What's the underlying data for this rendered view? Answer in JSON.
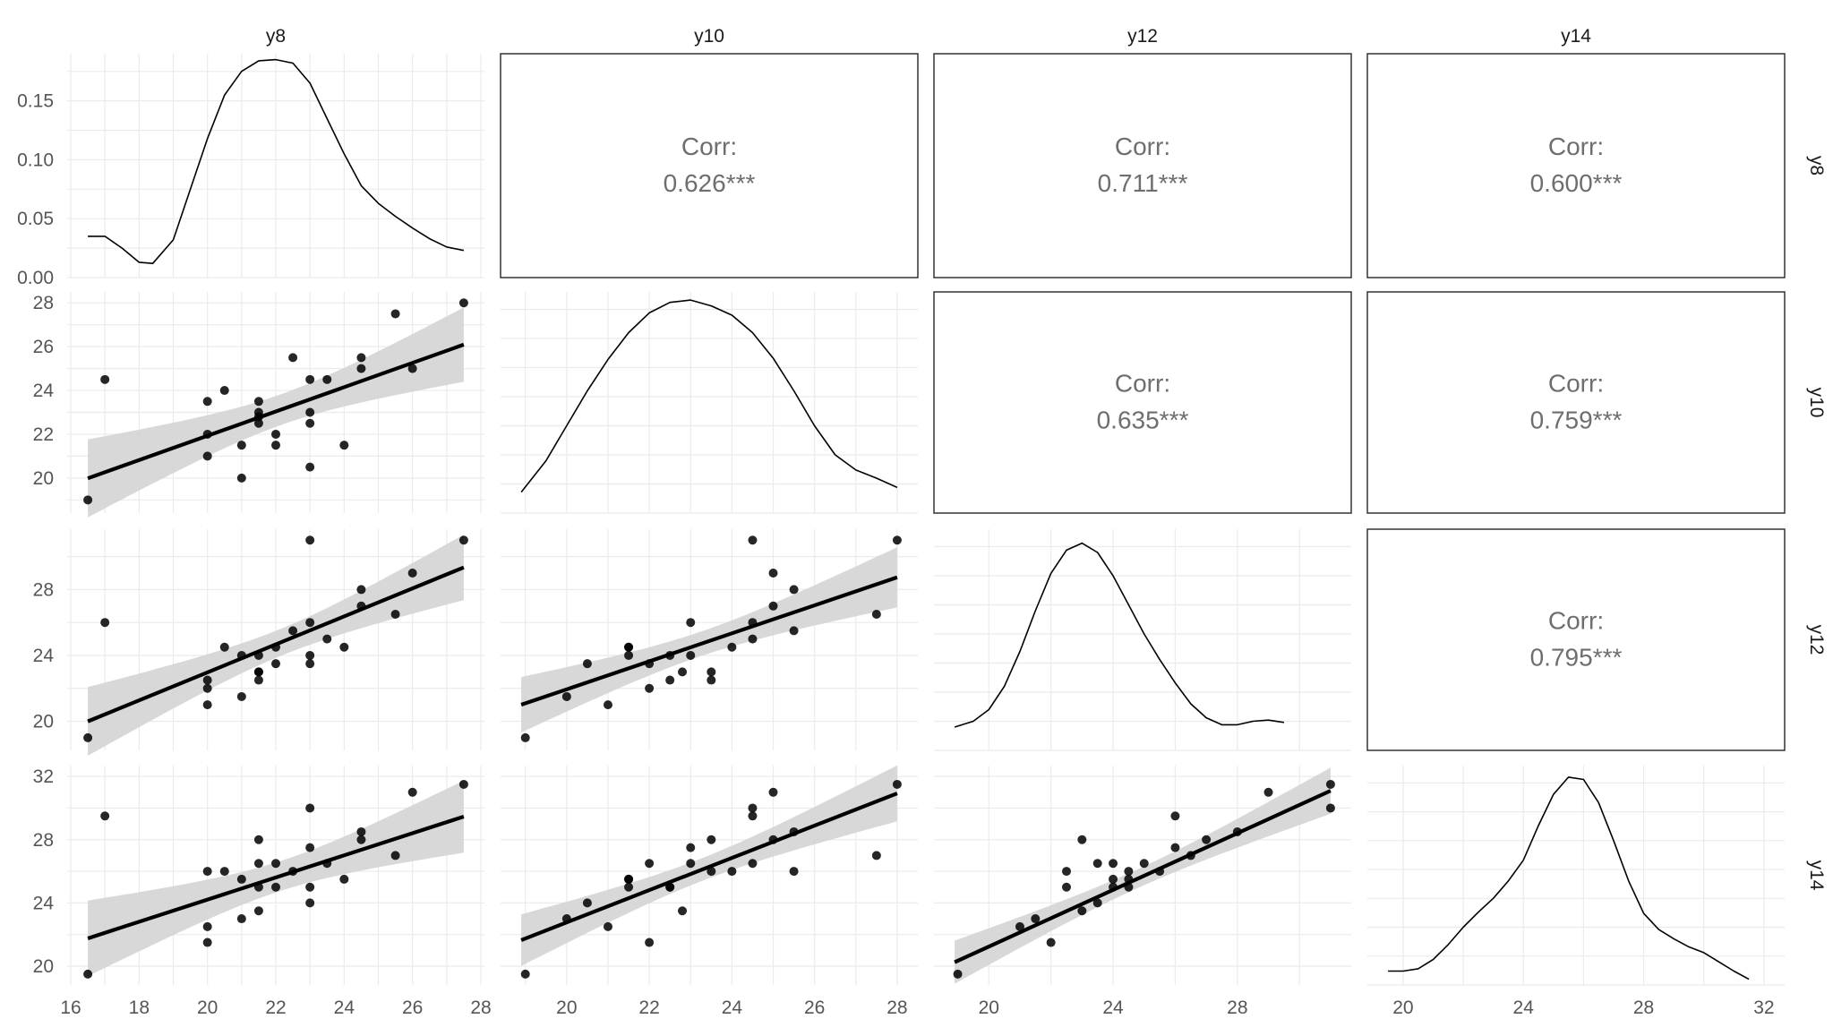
{
  "chart_data": {
    "type": "pairs",
    "variables": [
      "y8",
      "y10",
      "y12",
      "y14"
    ],
    "ranges": {
      "y8": [
        16.5,
        27.5
      ],
      "y10": [
        18.9,
        28.0
      ],
      "y12": [
        18.9,
        31.0
      ],
      "y14": [
        19.5,
        32.0
      ]
    },
    "ticks": {
      "y8": [
        16,
        18,
        20,
        22,
        24,
        26,
        28
      ],
      "y10": [
        20,
        22,
        24,
        26,
        28
      ],
      "y12": [
        20,
        24,
        28
      ],
      "y14": [
        20,
        24,
        28,
        32
      ]
    },
    "density_ticks": [
      "0.00",
      "0.05",
      "0.10",
      "0.15"
    ],
    "correlation_label": "Corr:",
    "correlations": [
      {
        "row": "y8",
        "col": "y10",
        "value": "0.626***"
      },
      {
        "row": "y8",
        "col": "y12",
        "value": "0.711***"
      },
      {
        "row": "y8",
        "col": "y14",
        "value": "0.600***"
      },
      {
        "row": "y10",
        "col": "y12",
        "value": "0.635***"
      },
      {
        "row": "y10",
        "col": "y14",
        "value": "0.759***"
      },
      {
        "row": "y12",
        "col": "y14",
        "value": "0.795***"
      }
    ],
    "observations": [
      {
        "y8": 16.5,
        "y10": 19.0,
        "y12": 19.0,
        "y14": 19.5
      },
      {
        "y8": 17.0,
        "y10": 24.5,
        "y12": 26.0,
        "y14": 29.5
      },
      {
        "y8": 20.0,
        "y10": 23.5,
        "y12": 22.5,
        "y14": 26.0
      },
      {
        "y8": 20.0,
        "y10": 21.0,
        "y12": 21.0,
        "y14": 22.5
      },
      {
        "y8": 20.0,
        "y10": 22.0,
        "y12": 22.0,
        "y14": 21.5
      },
      {
        "y8": 20.5,
        "y10": 24.0,
        "y12": 24.5,
        "y14": 26.0
      },
      {
        "y8": 21.0,
        "y10": 20.0,
        "y12": 21.5,
        "y14": 23.0
      },
      {
        "y8": 21.0,
        "y10": 21.5,
        "y12": 24.0,
        "y14": 25.5
      },
      {
        "y8": 21.5,
        "y10": 23.5,
        "y12": 23.0,
        "y14": 28.0
      },
      {
        "y8": 21.5,
        "y10": 22.5,
        "y12": 22.5,
        "y14": 25.0
      },
      {
        "y8": 21.5,
        "y10": 23.0,
        "y12": 24.0,
        "y14": 26.5
      },
      {
        "y8": 21.5,
        "y10": 22.8,
        "y12": 23.0,
        "y14": 23.5
      },
      {
        "y8": 22.0,
        "y10": 22.0,
        "y12": 23.5,
        "y14": 26.5
      },
      {
        "y8": 22.0,
        "y10": 21.5,
        "y12": 24.5,
        "y14": 25.0
      },
      {
        "y8": 22.5,
        "y10": 25.5,
        "y12": 25.5,
        "y14": 26.0
      },
      {
        "y8": 23.0,
        "y10": 24.5,
        "y12": 31.0,
        "y14": 30.0
      },
      {
        "y8": 23.0,
        "y10": 20.5,
        "y12": 23.5,
        "y14": 24.0
      },
      {
        "y8": 23.0,
        "y10": 22.5,
        "y12": 24.0,
        "y14": 25.0
      },
      {
        "y8": 23.0,
        "y10": 23.0,
        "y12": 26.0,
        "y14": 27.5
      },
      {
        "y8": 23.5,
        "y10": 24.5,
        "y12": 25.0,
        "y14": 26.5
      },
      {
        "y8": 24.0,
        "y10": 21.5,
        "y12": 24.5,
        "y14": 25.5
      },
      {
        "y8": 24.5,
        "y10": 25.5,
        "y12": 28.0,
        "y14": 28.5
      },
      {
        "y8": 24.5,
        "y10": 25.0,
        "y12": 27.0,
        "y14": 28.0
      },
      {
        "y8": 25.5,
        "y10": 27.5,
        "y12": 26.5,
        "y14": 27.0
      },
      {
        "y8": 26.0,
        "y10": 25.0,
        "y12": 29.0,
        "y14": 31.0
      },
      {
        "y8": 27.5,
        "y10": 28.0,
        "y12": 31.0,
        "y14": 31.5
      }
    ],
    "densities": {
      "y8": {
        "ylim": [
          0,
          0.19
        ],
        "points": [
          [
            16.5,
            0.035
          ],
          [
            17,
            0.035
          ],
          [
            17.5,
            0.025
          ],
          [
            18,
            0.013
          ],
          [
            18.4,
            0.012
          ],
          [
            19,
            0.032
          ],
          [
            19.5,
            0.075
          ],
          [
            20,
            0.118
          ],
          [
            20.5,
            0.155
          ],
          [
            21,
            0.175
          ],
          [
            21.5,
            0.184
          ],
          [
            22,
            0.185
          ],
          [
            22.5,
            0.182
          ],
          [
            23,
            0.165
          ],
          [
            23.5,
            0.135
          ],
          [
            24,
            0.105
          ],
          [
            24.5,
            0.078
          ],
          [
            25,
            0.063
          ],
          [
            25.5,
            0.052
          ],
          [
            26,
            0.042
          ],
          [
            26.5,
            0.033
          ],
          [
            27,
            0.026
          ],
          [
            27.5,
            0.023
          ]
        ]
      },
      "y10": {
        "ylim": [
          0,
          0.19
        ],
        "points": [
          [
            18.9,
            0.018
          ],
          [
            19.5,
            0.045
          ],
          [
            20,
            0.075
          ],
          [
            20.5,
            0.105
          ],
          [
            21,
            0.132
          ],
          [
            21.5,
            0.155
          ],
          [
            22,
            0.172
          ],
          [
            22.5,
            0.181
          ],
          [
            23,
            0.183
          ],
          [
            23.5,
            0.178
          ],
          [
            24,
            0.17
          ],
          [
            24.5,
            0.155
          ],
          [
            25,
            0.133
          ],
          [
            25.5,
            0.105
          ],
          [
            26,
            0.075
          ],
          [
            26.5,
            0.05
          ],
          [
            27,
            0.037
          ],
          [
            27.5,
            0.03
          ],
          [
            28,
            0.022
          ]
        ]
      },
      "y12": {
        "ylim": [
          0,
          0.19
        ],
        "points": [
          [
            18.9,
            0.02
          ],
          [
            19.5,
            0.025
          ],
          [
            20,
            0.035
          ],
          [
            20.5,
            0.055
          ],
          [
            21,
            0.085
          ],
          [
            21.5,
            0.12
          ],
          [
            22,
            0.152
          ],
          [
            22.5,
            0.172
          ],
          [
            23,
            0.178
          ],
          [
            23.5,
            0.17
          ],
          [
            24,
            0.15
          ],
          [
            24.5,
            0.125
          ],
          [
            25,
            0.1
          ],
          [
            25.5,
            0.078
          ],
          [
            26,
            0.058
          ],
          [
            26.5,
            0.04
          ],
          [
            27,
            0.028
          ],
          [
            27.5,
            0.022
          ],
          [
            28,
            0.022
          ],
          [
            28.5,
            0.025
          ],
          [
            29,
            0.026
          ],
          [
            29.5,
            0.024
          ]
        ]
      },
      "y14": {
        "ylim": [
          0,
          0.19
        ],
        "points": [
          [
            19.5,
            0.012
          ],
          [
            20,
            0.012
          ],
          [
            20.5,
            0.014
          ],
          [
            21,
            0.022
          ],
          [
            21.5,
            0.035
          ],
          [
            22,
            0.05
          ],
          [
            22.5,
            0.063
          ],
          [
            23,
            0.075
          ],
          [
            23.5,
            0.09
          ],
          [
            24,
            0.108
          ],
          [
            24.5,
            0.138
          ],
          [
            25,
            0.165
          ],
          [
            25.5,
            0.18
          ],
          [
            26,
            0.178
          ],
          [
            26.5,
            0.158
          ],
          [
            27,
            0.125
          ],
          [
            27.5,
            0.09
          ],
          [
            28,
            0.062
          ],
          [
            28.5,
            0.048
          ],
          [
            29,
            0.04
          ],
          [
            29.5,
            0.033
          ],
          [
            30,
            0.028
          ],
          [
            30.5,
            0.02
          ],
          [
            31,
            0.012
          ],
          [
            31.5,
            0.005
          ]
        ]
      }
    },
    "regression": {
      "y10~y8": {
        "intercept": 10.83,
        "slope": 0.555
      },
      "y12~y8": {
        "intercept": 5.97,
        "slope": 0.85
      },
      "y12~y10": {
        "intercept": 4.94,
        "slope": 0.85
      },
      "y14~y8": {
        "intercept": 10.21,
        "slope": 0.7
      },
      "y14~y10": {
        "intercept": 2.37,
        "slope": 1.02
      },
      "y14~y12": {
        "intercept": 3.32,
        "slope": 0.896
      }
    },
    "grid": true,
    "colors": {
      "points": "#000000",
      "line": "#000000",
      "band": "#d4d4d4",
      "grid": "#ebebeb",
      "text": "#555555",
      "corr": "#6e6e6e"
    }
  }
}
